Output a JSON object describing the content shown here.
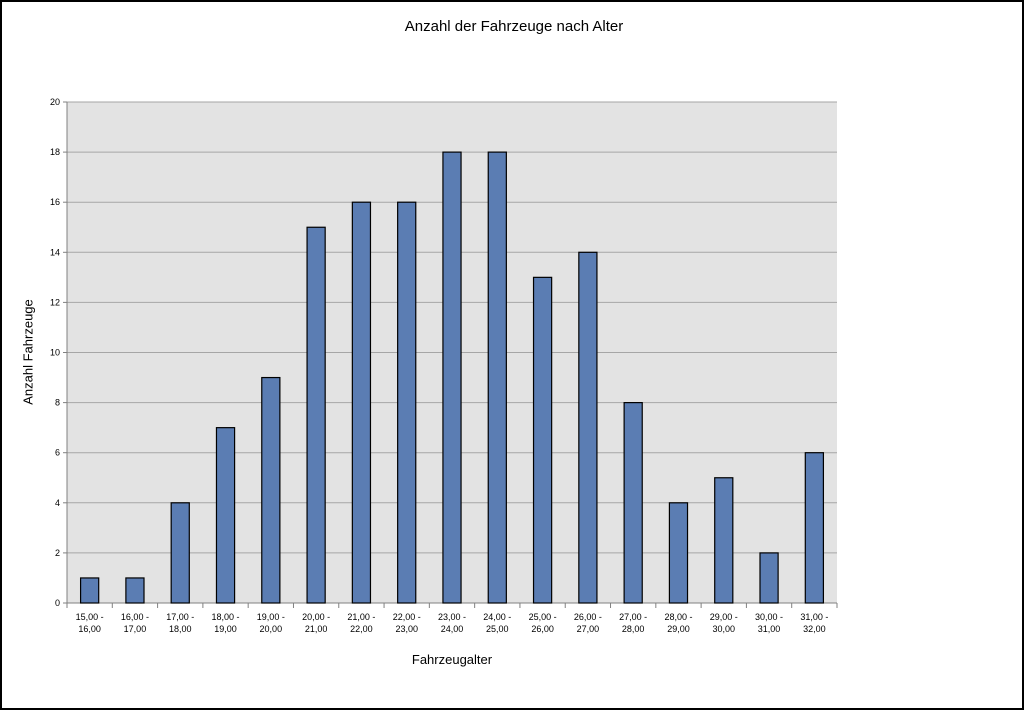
{
  "chart_data": {
    "type": "bar",
    "title": "Anzahl der Fahrzeuge nach Alter",
    "xlabel": "Fahrzeugalter",
    "ylabel": "Anzahl Fahrzeuge",
    "ylim": [
      0,
      20
    ],
    "yticks": [
      0,
      2,
      4,
      6,
      8,
      10,
      12,
      14,
      16,
      18,
      20
    ],
    "grid": true,
    "legend": "none",
    "categories": [
      [
        "15,00 -",
        "16,00"
      ],
      [
        "16,00 -",
        "17,00"
      ],
      [
        "17,00 -",
        "18,00"
      ],
      [
        "18,00 -",
        "19,00"
      ],
      [
        "19,00 -",
        "20,00"
      ],
      [
        "20,00 -",
        "21,00"
      ],
      [
        "21,00 -",
        "22,00"
      ],
      [
        "22,00 -",
        "23,00"
      ],
      [
        "23,00 -",
        "24,00"
      ],
      [
        "24,00 -",
        "25,00"
      ],
      [
        "25,00 -",
        "26,00"
      ],
      [
        "26,00 -",
        "27,00"
      ],
      [
        "27,00 -",
        "28,00"
      ],
      [
        "28,00 -",
        "29,00"
      ],
      [
        "29,00 -",
        "30,00"
      ],
      [
        "30,00 -",
        "31,00"
      ],
      [
        "31,00 -",
        "32,00"
      ]
    ],
    "values": [
      1,
      1,
      4,
      7,
      9,
      15,
      16,
      16,
      18,
      18,
      13,
      14,
      8,
      4,
      5,
      2,
      6
    ],
    "colors": {
      "bar": "#5b7db3",
      "plot_background": "#e3e3e3",
      "gridline": "#a6a6a6"
    }
  }
}
